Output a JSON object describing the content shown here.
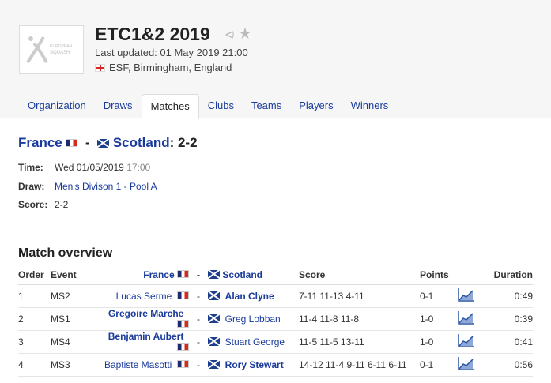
{
  "header": {
    "logo_text": "EUROPEAN SQUASH",
    "title": "ETC1&2 2019",
    "last_updated": "Last updated: 01 May 2019 21:00",
    "location": "ESF, Birmingham, England",
    "icons": [
      "share-icon",
      "star-icon"
    ]
  },
  "tabs": [
    {
      "label": "Organization"
    },
    {
      "label": "Draws"
    },
    {
      "label": "Matches",
      "active": true
    },
    {
      "label": "Clubs"
    },
    {
      "label": "Teams"
    },
    {
      "label": "Players"
    },
    {
      "label": "Winners"
    }
  ],
  "match": {
    "team1": "France",
    "team2": "Scotland",
    "score_suffix": ": 2-2",
    "dash": "-",
    "time_label": "Time:",
    "date": "Wed 01/05/2019",
    "time": "17:00",
    "draw_label": "Draw:",
    "draw": "Men's Divison 1 - Pool A",
    "score_label": "Score:",
    "score": "2-2"
  },
  "overview": {
    "heading": "Match overview",
    "headers": {
      "order": "Order",
      "event": "Event",
      "team1": "France",
      "team2": "Scotland",
      "score": "Score",
      "points": "Points",
      "duration": "Duration"
    },
    "rows": [
      {
        "order": "1",
        "event": "MS2",
        "player1": "Lucas Serme",
        "player2": "Alan Clyne",
        "score": "7-11 11-13 4-11",
        "points": "0-1",
        "duration": "0:49",
        "winner": 2
      },
      {
        "order": "2",
        "event": "MS1",
        "player1": "Gregoire Marche",
        "player2": "Greg Lobban",
        "score": "11-4 11-8 11-8",
        "points": "1-0",
        "duration": "0:39",
        "winner": 1
      },
      {
        "order": "3",
        "event": "MS4",
        "player1": "Benjamin Aubert",
        "player2": "Stuart George",
        "score": "11-5 11-5 13-11",
        "points": "1-0",
        "duration": "0:41",
        "winner": 1
      },
      {
        "order": "4",
        "event": "MS3",
        "player1": "Baptiste Masotti",
        "player2": "Rory Stewart",
        "score": "14-12 11-4 9-11 6-11 6-11",
        "points": "0-1",
        "duration": "0:56",
        "winner": 2
      }
    ]
  },
  "colors": {
    "link": "#1a3b9c",
    "header_bg": "#f6f6f6"
  }
}
